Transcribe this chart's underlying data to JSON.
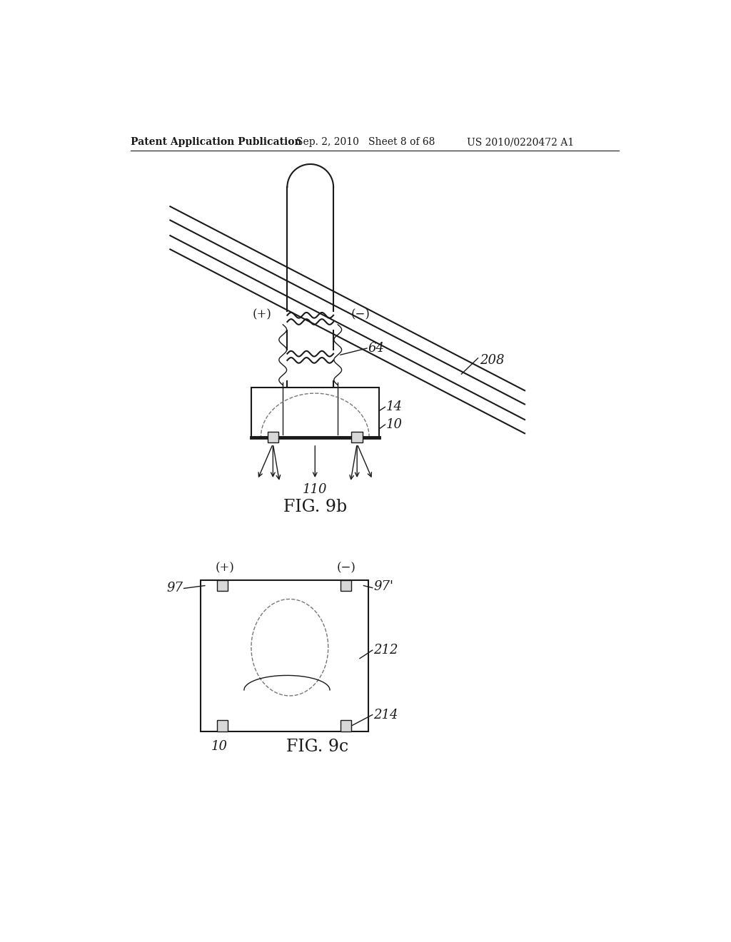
{
  "bg_color": "#ffffff",
  "header_left": "Patent Application Publication",
  "header_mid": "Sep. 2, 2010   Sheet 8 of 68",
  "header_right": "US 2010/0220472 A1",
  "fig9b_label": "FIG. 9b",
  "fig9c_label": "FIG. 9c",
  "line_color": "#1a1a1a",
  "dash_color": "#777777"
}
